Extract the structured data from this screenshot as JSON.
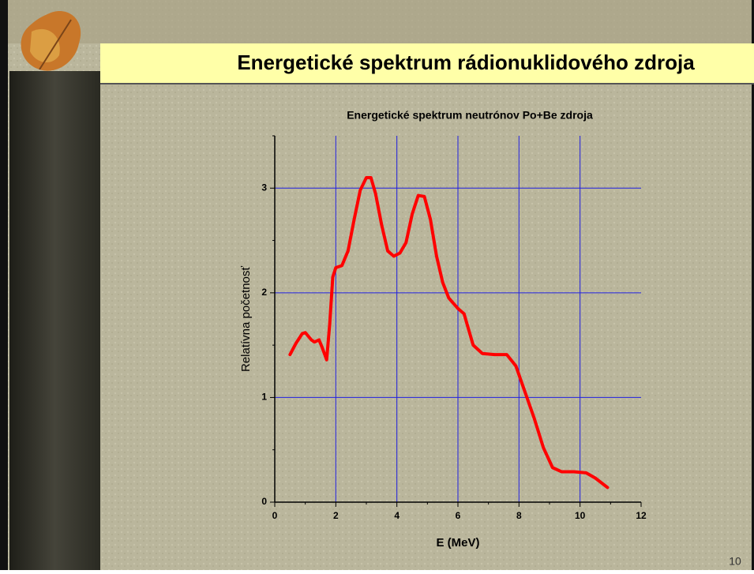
{
  "slide": {
    "title": "Energetické spektrum rádionuklidového zdroja",
    "page_number": "10"
  },
  "chart_data": {
    "type": "line",
    "title": "Energetické spektrum neutrónov Po+Be zdroja",
    "x_label": "E (MeV)",
    "y_label": "Relatívna početnosť",
    "color": "#ff0000",
    "grid": true,
    "xlim": [
      0,
      12
    ],
    "ylim": [
      0,
      3.5
    ],
    "xticks": [
      0,
      2,
      4,
      6,
      8,
      10,
      12
    ],
    "yticks": [
      0,
      1,
      2,
      3
    ],
    "x": [
      0.5,
      0.7,
      0.9,
      1.0,
      1.2,
      1.3,
      1.45,
      1.55,
      1.7,
      1.8,
      1.9,
      2.0,
      2.2,
      2.4,
      2.6,
      2.8,
      3.0,
      3.15,
      3.3,
      3.5,
      3.7,
      3.9,
      4.1,
      4.3,
      4.5,
      4.7,
      4.9,
      5.1,
      5.3,
      5.5,
      5.7,
      6.0,
      6.2,
      6.3,
      6.5,
      6.8,
      7.2,
      7.6,
      7.9,
      8.2,
      8.5,
      8.8,
      9.1,
      9.4,
      9.8,
      10.2,
      10.5,
      10.9
    ],
    "values": [
      1.41,
      1.52,
      1.61,
      1.62,
      1.55,
      1.53,
      1.55,
      1.48,
      1.36,
      1.7,
      2.15,
      2.24,
      2.26,
      2.4,
      2.7,
      2.98,
      3.1,
      3.1,
      2.95,
      2.65,
      2.4,
      2.35,
      2.38,
      2.48,
      2.75,
      2.93,
      2.92,
      2.7,
      2.35,
      2.1,
      1.95,
      1.85,
      1.8,
      1.7,
      1.5,
      1.42,
      1.41,
      1.41,
      1.3,
      1.05,
      0.8,
      0.52,
      0.33,
      0.29,
      0.29,
      0.28,
      0.23,
      0.14
    ]
  }
}
